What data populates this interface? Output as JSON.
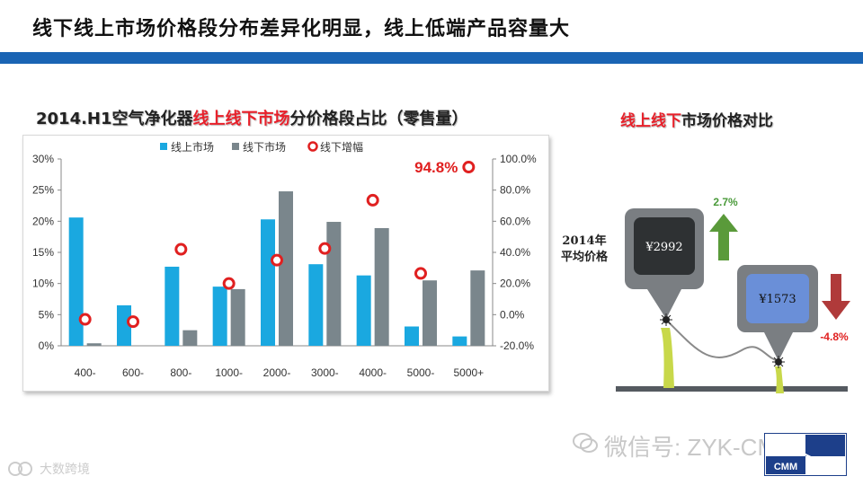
{
  "slide": {
    "title": "线下线上市场价格段分布差异化明显，线上低端产品容量大"
  },
  "chart_title": {
    "prefix": "2014.H1空气净化器",
    "highlight": "线上线下市场",
    "suffix": "分价格段占比（零售量）"
  },
  "chart_data": {
    "type": "bar",
    "categories": [
      "400-",
      "600-",
      "800-",
      "1000-",
      "2000-",
      "3000-",
      "4000-",
      "5000-",
      "5000+"
    ],
    "series": [
      {
        "name": "线上市场",
        "type": "bar",
        "axis": "left",
        "color": "#1aa8e0",
        "values": [
          20.6,
          6.5,
          12.7,
          9.5,
          20.3,
          13.1,
          11.3,
          3.1,
          1.5
        ]
      },
      {
        "name": "线下市场",
        "type": "bar",
        "axis": "left",
        "color": "#7a868c",
        "values": [
          0.4,
          0.0,
          2.5,
          9.1,
          24.8,
          19.9,
          18.9,
          10.5,
          12.1
        ]
      },
      {
        "name": "线下增幅",
        "type": "scatter",
        "axis": "right",
        "color": "#e02020",
        "values": [
          -3.0,
          -4.5,
          42.0,
          20.0,
          35.0,
          42.5,
          73.5,
          26.5,
          94.8
        ]
      }
    ],
    "y_left": {
      "min": 0,
      "max": 30,
      "step": 5,
      "tick_labels": [
        "0%",
        "5%",
        "10%",
        "15%",
        "20%",
        "25%",
        "30%"
      ]
    },
    "y_right": {
      "min": -20,
      "max": 100,
      "step": 20,
      "tick_labels": [
        "-20.0%",
        "0.0%",
        "20.0%",
        "40.0%",
        "60.0%",
        "80.0%",
        "100.0%"
      ]
    },
    "callout": {
      "label": "94.8%",
      "category_index": 8
    },
    "legend_position": "top",
    "grid": false
  },
  "comparison": {
    "title_highlight": "线上线下",
    "title_suffix": "市场价格对比",
    "year_label_line1": "2014年",
    "year_label_line2": "平均价格",
    "offline_price": "¥2992",
    "online_price": "¥1573",
    "offline_change": "2.7%",
    "online_change": "-4.8%",
    "colors": {
      "up": "#5a9a3a",
      "down": "#b03a3a",
      "online_screen": "#6a8fd8",
      "offline_screen": "#3a3a3a"
    }
  },
  "watermark": {
    "text": "微信号: ZYK-CMM",
    "logo_text": "CMM",
    "corner_text": "大数跨境"
  }
}
